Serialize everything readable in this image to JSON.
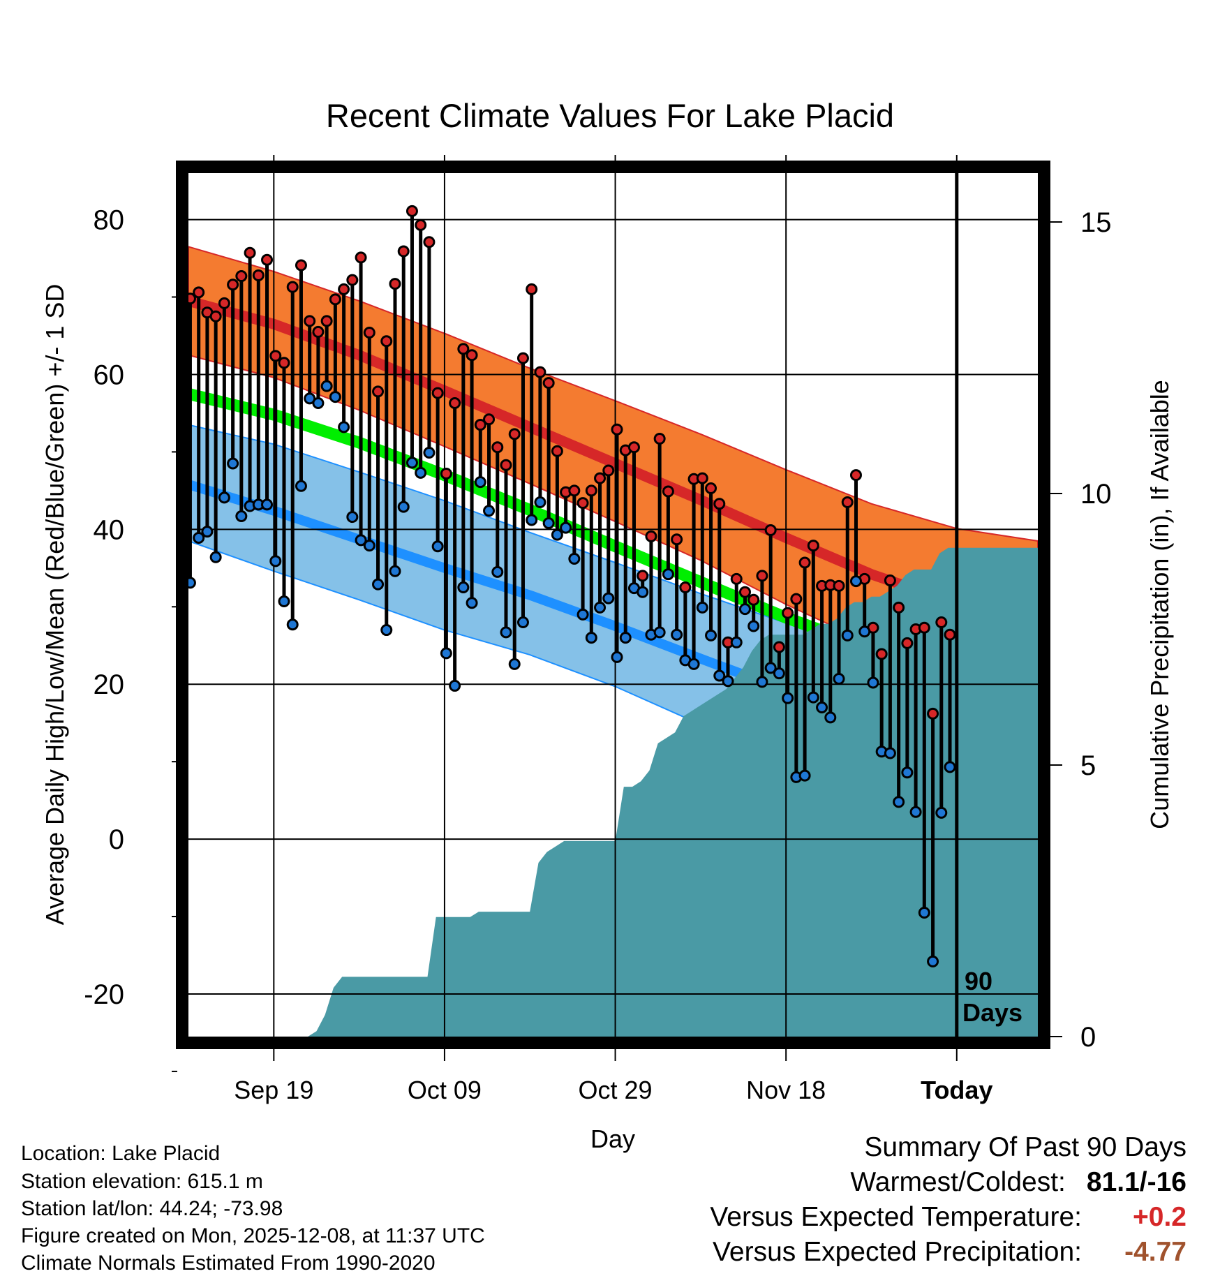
{
  "chart_data": {
    "type": "line",
    "title": "Recent Climate Values For Lake Placid",
    "xlabel": "Day",
    "ylabel": "Average Daily High/Low/Mean (Red/Blue/Green) +/- 1 SD",
    "y2label": "Cumulative Precipitation (in), If Available",
    "ylim": [
      -25.5,
      86
    ],
    "y_ticks": [
      -20,
      0,
      20,
      40,
      60,
      80
    ],
    "y2lim": [
      0,
      15.9
    ],
    "y2_ticks": [
      0,
      5,
      10,
      15
    ],
    "x_range_days": [
      0,
      99.5
    ],
    "x_ticks": [
      {
        "day": 10,
        "label": "Sep 19"
      },
      {
        "day": 30,
        "label": "Oct 09"
      },
      {
        "day": 50,
        "label": "Oct 29"
      },
      {
        "day": 70,
        "label": "Nov 18"
      },
      {
        "day": 90,
        "label": "Today"
      }
    ],
    "today_day": 90,
    "period_label": [
      "90",
      "Days"
    ],
    "normal_high": {
      "x": [
        0,
        10,
        20,
        30,
        40,
        50,
        60,
        70,
        80,
        90,
        99.5
      ],
      "mean": [
        69.5,
        66.5,
        62.5,
        57.9,
        53.2,
        48.5,
        43.8,
        38.9,
        34.2,
        30.4,
        27.0
      ],
      "upper": [
        76.5,
        73.3,
        69.5,
        65.3,
        60.8,
        56.6,
        52.3,
        47.7,
        43.3,
        40.1,
        38.5
      ],
      "lower": [
        62.5,
        59.6,
        55.4,
        50.7,
        45.9,
        41.0,
        36.0,
        30.3,
        25.2,
        20.4,
        16.5
      ]
    },
    "normal_mean": {
      "x": [
        0,
        10,
        20,
        30,
        40,
        50,
        60,
        70,
        80,
        90,
        99.5
      ],
      "mean": [
        57.5,
        54.8,
        51.2,
        47.0,
        42.5,
        37.8,
        33.2,
        28.6,
        24.6,
        21.5,
        19.3
      ]
    },
    "normal_low": {
      "x": [
        0,
        10,
        20,
        30,
        40,
        50,
        60,
        70,
        80,
        90,
        99.5
      ],
      "mean": [
        45.8,
        42.4,
        38.7,
        35.0,
        31.5,
        27.5,
        23.3,
        19.2,
        15.0,
        13.0,
        11.0
      ],
      "upper": [
        53.5,
        51.0,
        47.4,
        43.7,
        39.6,
        35.7,
        31.7,
        27.9,
        25.7,
        25.0,
        24.5
      ],
      "lower": [
        38.5,
        34.6,
        30.9,
        27.0,
        23.8,
        19.7,
        14.8,
        10.0,
        4.5,
        0.5,
        -3.5
      ]
    },
    "series": [
      {
        "name": "Daily High",
        "color": "#d62728",
        "x": [
          0.2,
          1.2,
          2.2,
          3.2,
          4.2,
          5.2,
          6.2,
          7.2,
          8.2,
          9.2,
          10.2,
          11.2,
          12.2,
          13.2,
          14.2,
          15.2,
          16.2,
          17.2,
          18.2,
          19.2,
          20.2,
          21.2,
          22.2,
          23.2,
          24.2,
          25.2,
          26.2,
          27.2,
          28.2,
          29.2,
          30.2,
          31.2,
          32.2,
          33.2,
          34.2,
          35.2,
          36.2,
          37.2,
          38.2,
          39.2,
          40.2,
          41.2,
          42.2,
          43.2,
          44.2,
          45.2,
          46.2,
          47.2,
          48.2,
          49.2,
          50.2,
          51.2,
          52.2,
          53.2,
          54.2,
          55.2,
          56.2,
          57.2,
          58.2,
          59.2,
          60.2,
          61.2,
          62.2,
          63.2,
          64.2,
          65.2,
          66.2,
          67.2,
          68.2,
          69.2,
          70.2,
          71.2,
          72.2,
          73.2,
          74.2,
          75.2,
          76.2,
          77.2,
          78.2,
          79.2,
          80.2,
          81.2,
          82.2,
          83.2,
          84.2,
          85.2,
          86.2,
          87.2,
          88.2,
          89.2
        ],
        "values": [
          69.8,
          70.6,
          68.0,
          67.5,
          69.2,
          71.6,
          72.7,
          75.7,
          72.8,
          74.8,
          62.4,
          61.5,
          71.3,
          74.1,
          66.9,
          65.5,
          66.9,
          69.7,
          71.0,
          72.2,
          75.1,
          65.4,
          57.8,
          64.3,
          71.7,
          75.9,
          81.1,
          79.3,
          77.1,
          57.6,
          47.2,
          56.3,
          63.3,
          62.5,
          53.5,
          54.2,
          50.6,
          48.3,
          52.3,
          62.1,
          71.0,
          60.3,
          58.9,
          50.1,
          44.8,
          45.0,
          43.4,
          45.0,
          46.6,
          47.6,
          52.9,
          50.2,
          50.6,
          34.0,
          39.1,
          51.7,
          44.9,
          38.7,
          32.5,
          46.5,
          46.6,
          45.3,
          43.3,
          25.4,
          33.6,
          31.9,
          30.9,
          34.0,
          39.9,
          24.8,
          29.2,
          31.0,
          35.7,
          37.9,
          32.7,
          32.8,
          32.7,
          43.5,
          47.0,
          33.6,
          27.3,
          23.9,
          33.4,
          29.9,
          25.3,
          27.1,
          27.3,
          16.2,
          28.0,
          26.4
        ]
      },
      {
        "name": "Daily Low",
        "color": "#1f77d4",
        "x": [
          0.2,
          1.2,
          2.2,
          3.2,
          4.2,
          5.2,
          6.2,
          7.2,
          8.2,
          9.2,
          10.2,
          11.2,
          12.2,
          13.2,
          14.2,
          15.2,
          16.2,
          17.2,
          18.2,
          19.2,
          20.2,
          21.2,
          22.2,
          23.2,
          24.2,
          25.2,
          26.2,
          27.2,
          28.2,
          29.2,
          30.2,
          31.2,
          32.2,
          33.2,
          34.2,
          35.2,
          36.2,
          37.2,
          38.2,
          39.2,
          40.2,
          41.2,
          42.2,
          43.2,
          44.2,
          45.2,
          46.2,
          47.2,
          48.2,
          49.2,
          50.2,
          51.2,
          52.2,
          53.2,
          54.2,
          55.2,
          56.2,
          57.2,
          58.2,
          59.2,
          60.2,
          61.2,
          62.2,
          63.2,
          64.2,
          65.2,
          66.2,
          67.2,
          68.2,
          69.2,
          70.2,
          71.2,
          72.2,
          73.2,
          74.2,
          75.2,
          76.2,
          77.2,
          78.2,
          79.2,
          80.2,
          81.2,
          82.2,
          83.2,
          84.2,
          85.2,
          86.2,
          87.2,
          88.2,
          89.2
        ],
        "values": [
          33.1,
          38.9,
          39.7,
          36.4,
          44.1,
          48.5,
          41.7,
          43.0,
          43.2,
          43.2,
          35.9,
          30.7,
          27.7,
          45.6,
          56.9,
          56.3,
          58.5,
          57.1,
          53.2,
          41.6,
          38.6,
          37.9,
          32.9,
          27.0,
          34.6,
          42.9,
          48.6,
          47.3,
          49.9,
          37.8,
          24.0,
          19.8,
          32.5,
          30.5,
          46.1,
          42.4,
          34.5,
          26.7,
          22.6,
          28.0,
          41.2,
          43.5,
          40.8,
          39.3,
          40.2,
          36.2,
          29.0,
          26.0,
          29.9,
          31.1,
          23.5,
          26.0,
          32.4,
          31.9,
          26.4,
          26.7,
          34.2,
          26.4,
          23.1,
          22.6,
          29.9,
          26.3,
          21.1,
          20.4,
          25.4,
          29.7,
          27.5,
          20.3,
          22.1,
          21.4,
          18.2,
          8.0,
          8.2,
          18.3,
          17.0,
          15.7,
          20.7,
          26.3,
          33.3,
          26.8,
          20.2,
          11.3,
          11.1,
          4.8,
          8.6,
          3.5,
          -9.5,
          -15.8,
          3.4,
          9.3
        ]
      }
    ],
    "precipitation": {
      "name": "Cumulative Precipitation",
      "color": "#4a9aa5",
      "x": [
        0,
        14,
        15,
        16,
        17,
        18,
        19,
        20,
        21,
        22,
        23,
        24,
        25,
        26,
        27,
        28,
        29,
        30,
        31,
        32,
        33,
        34,
        35,
        36,
        37,
        38,
        39,
        40,
        41,
        42,
        43,
        44,
        45,
        46,
        47,
        48,
        49,
        50,
        51,
        52,
        53,
        54,
        55,
        56,
        57,
        58,
        59,
        60,
        61,
        62,
        63,
        64,
        65,
        66,
        67,
        68,
        69,
        70,
        71,
        72,
        73,
        74,
        75,
        76,
        77,
        78,
        79,
        80,
        81,
        82,
        83,
        84,
        85,
        86,
        87,
        88,
        89,
        90,
        99.5
      ],
      "values": [
        0,
        0,
        0.1,
        0.4,
        0.9,
        1.1,
        1.1,
        1.1,
        1.1,
        1.1,
        1.1,
        1.1,
        1.1,
        1.1,
        1.1,
        1.1,
        2.2,
        2.2,
        2.2,
        2.2,
        2.2,
        2.3,
        2.3,
        2.3,
        2.3,
        2.3,
        2.3,
        2.3,
        3.2,
        3.4,
        3.5,
        3.6,
        3.6,
        3.6,
        3.6,
        3.6,
        3.6,
        3.6,
        4.6,
        4.6,
        4.7,
        4.9,
        5.4,
        5.5,
        5.6,
        5.9,
        6.0,
        6.1,
        6.2,
        6.3,
        6.4,
        6.6,
        6.8,
        7.1,
        7.3,
        7.4,
        7.4,
        7.4,
        7.4,
        7.4,
        7.5,
        7.6,
        7.6,
        7.7,
        7.9,
        8.0,
        8.0,
        8.1,
        8.1,
        8.2,
        8.3,
        8.5,
        8.6,
        8.6,
        8.6,
        8.9,
        9.0,
        9.0,
        9.0
      ]
    }
  },
  "info": {
    "location": "Location: Lake Placid",
    "elevation": "Station elevation: 615.1 m",
    "latlon": "Station lat/lon: 44.24; -73.98",
    "created": "Figure created on Mon, 2025-12-08, at 11:37 UTC",
    "normals": "Climate Normals Estimated From 1990-2020"
  },
  "summary": {
    "heading": "Summary Of Past 90 Days",
    "warmest_label": "Warmest/Coldest:",
    "warmest_value": "81.1/-16",
    "temp_label": "Versus Expected Temperature:",
    "temp_value": "+0.2",
    "temp_color": "#d62728",
    "precip_label": "Versus Expected Precipitation:",
    "precip_value": "-4.77",
    "precip_color": "#a0522d"
  },
  "colors": {
    "high_band": "#f47b30",
    "high_mean": "#d62728",
    "mean_line": "#00ee00",
    "low_band": "#85c1e8",
    "low_mean": "#1e90ff",
    "overlap": "#9b1414"
  }
}
